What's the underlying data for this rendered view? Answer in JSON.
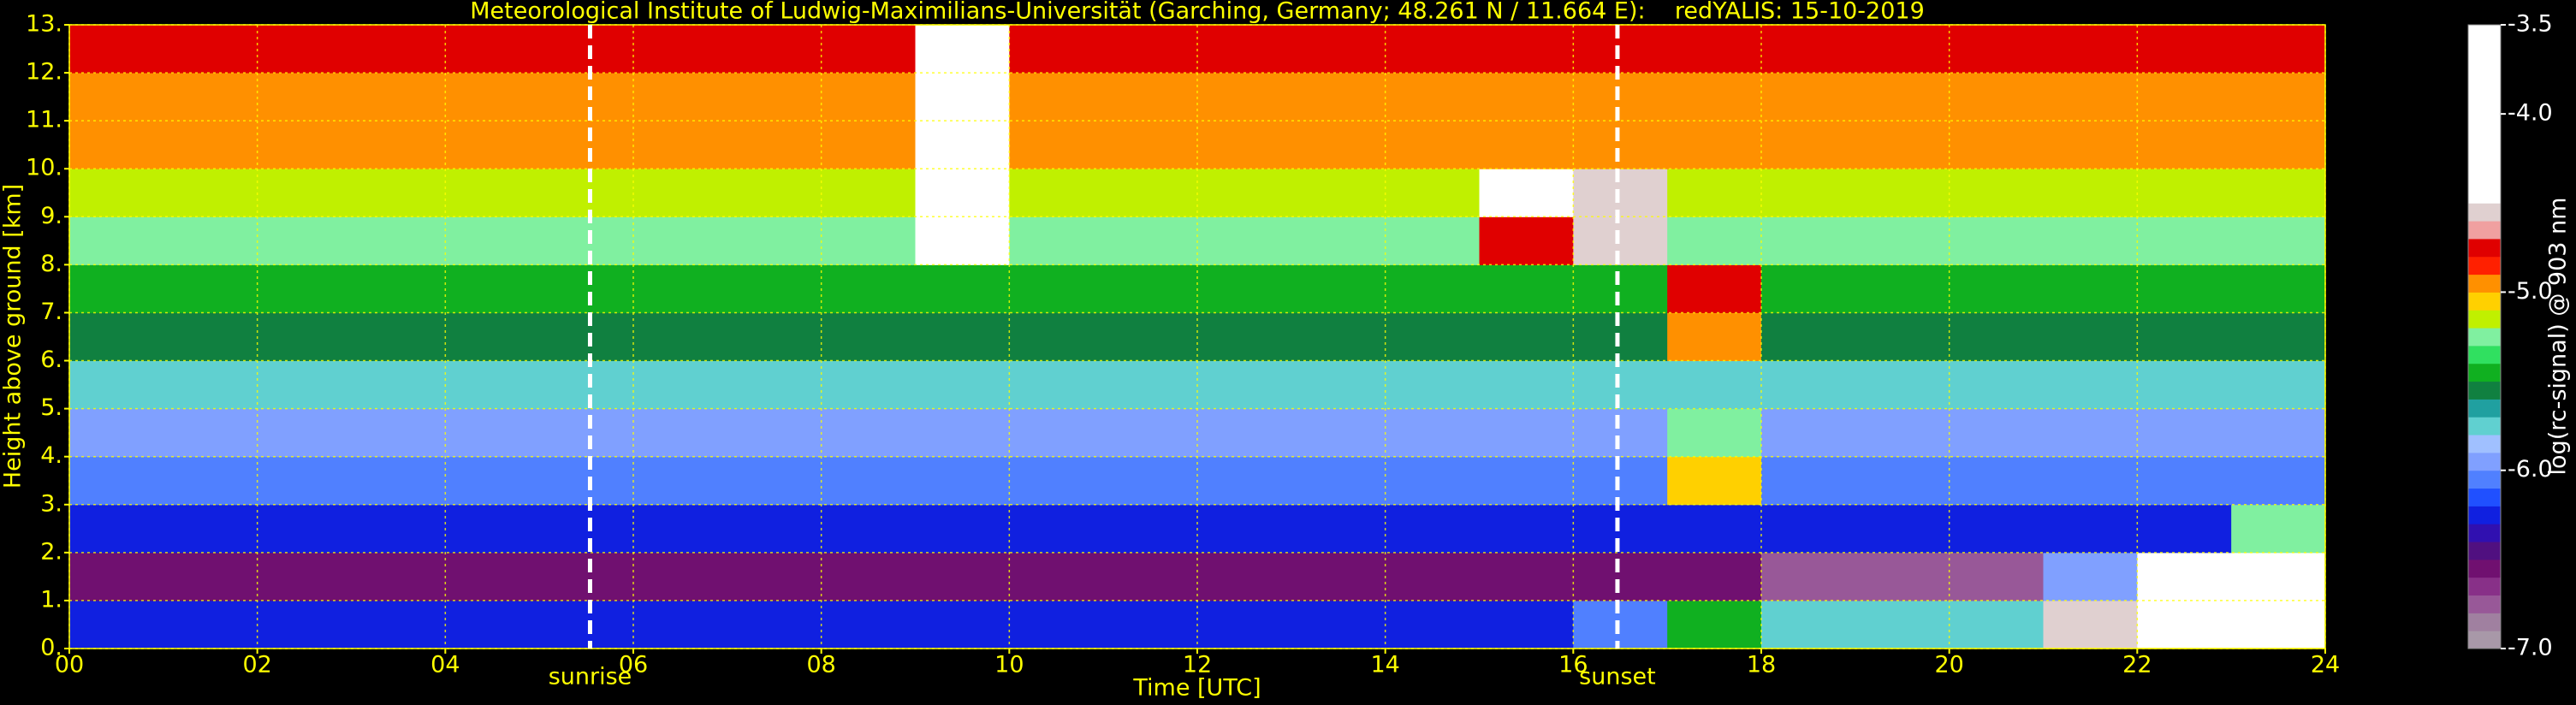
{
  "chart_data": {
    "type": "heatmap",
    "title": "Meteorological Institute of Ludwig-Maximilians-Universität (Garching, Germany; 48.261 N / 11.664 E):    redYALIS: 15-10-2019",
    "xlabel": "Time [UTC]",
    "ylabel": "Height above ground [km]",
    "colorbar_label": "log(rc-signal) @ 903 nm",
    "xbins": [
      0,
      1,
      2,
      3,
      4,
      5,
      6,
      7,
      8,
      9,
      10,
      11,
      12,
      13,
      14,
      15,
      16,
      17,
      18,
      19,
      20,
      21,
      22,
      23,
      24
    ],
    "ybins": [
      0,
      1,
      2,
      3,
      4,
      5,
      6,
      7,
      8,
      9,
      10,
      11,
      12,
      13
    ],
    "z": [
      [
        -6.3,
        -6.3,
        -6.3,
        -6.3,
        -6.3,
        -6.3,
        -6.3,
        -6.3,
        -6.3,
        -6.3,
        -6.3,
        -6.3,
        -6.3,
        -6.3,
        -6.3,
        -6.3,
        -6.1,
        -5.5,
        -5.8,
        -5.8,
        -5.8,
        -4.6,
        -4.1,
        -4.1
      ],
      [
        -6.6,
        -6.6,
        -6.6,
        -6.6,
        -6.6,
        -6.6,
        -6.6,
        -6.6,
        -6.6,
        -6.6,
        -6.6,
        -6.6,
        -6.6,
        -6.6,
        -6.6,
        -6.6,
        -6.6,
        -6.6,
        -6.8,
        -6.8,
        -6.8,
        -6.0,
        -4.3,
        -4.3
      ],
      [
        -6.3,
        -6.3,
        -6.3,
        -6.3,
        -6.3,
        -6.3,
        -6.3,
        -6.3,
        -6.3,
        -6.3,
        -6.3,
        -6.3,
        -6.3,
        -6.3,
        -6.3,
        -6.3,
        -6.3,
        -6.3,
        -6.3,
        -6.3,
        -6.3,
        -6.3,
        -6.3,
        -5.3
      ],
      [
        -6.1,
        -6.1,
        -6.1,
        -6.1,
        -6.1,
        -6.1,
        -6.1,
        -6.1,
        -6.1,
        -6.1,
        -6.1,
        -6.1,
        -6.1,
        -6.1,
        -6.1,
        -6.1,
        -6.1,
        -5.1,
        -6.1,
        -6.1,
        -6.1,
        -6.1,
        -6.1,
        -6.1
      ],
      [
        -5.9,
        -5.9,
        -5.9,
        -5.9,
        -5.9,
        -5.9,
        -5.9,
        -5.9,
        -5.9,
        -5.9,
        -5.9,
        -5.9,
        -5.9,
        -5.9,
        -5.9,
        -5.9,
        -5.9,
        -5.3,
        -5.9,
        -5.9,
        -5.9,
        -5.9,
        -5.9,
        -5.9
      ],
      [
        -5.8,
        -5.8,
        -5.8,
        -5.8,
        -5.8,
        -5.8,
        -5.8,
        -5.8,
        -5.8,
        -5.8,
        -5.8,
        -5.8,
        -5.8,
        -5.8,
        -5.8,
        -5.8,
        -5.8,
        -5.8,
        -5.8,
        -5.8,
        -5.8,
        -5.8,
        -5.8,
        -5.8
      ],
      [
        -5.6,
        -5.6,
        -5.6,
        -5.6,
        -5.6,
        -5.6,
        -5.6,
        -5.6,
        -5.6,
        -5.6,
        -5.6,
        -5.6,
        -5.6,
        -5.6,
        -5.6,
        -5.6,
        -5.6,
        -4.9,
        -5.6,
        -5.6,
        -5.6,
        -5.6,
        -5.6,
        -5.6
      ],
      [
        -5.5,
        -5.5,
        -5.5,
        -5.5,
        -5.5,
        -5.5,
        -5.5,
        -5.5,
        -5.5,
        -5.5,
        -5.5,
        -5.5,
        -5.5,
        -5.5,
        -5.5,
        -5.5,
        -5.5,
        -4.8,
        -5.5,
        -5.5,
        -5.5,
        -5.5,
        -5.5,
        -5.5
      ],
      [
        -5.3,
        -5.3,
        -5.3,
        -5.3,
        -5.3,
        -5.3,
        -5.3,
        -5.3,
        -5.3,
        -4.4,
        -5.3,
        -5.3,
        -5.3,
        -5.3,
        -5.3,
        -4.8,
        -4.6,
        -5.3,
        -5.3,
        -5.3,
        -5.3,
        -5.3,
        -5.3,
        -5.3
      ],
      [
        -5.2,
        -5.2,
        -5.2,
        -5.2,
        -5.2,
        -5.2,
        -5.2,
        -5.2,
        -5.2,
        -4.0,
        -5.2,
        -5.2,
        -5.2,
        -5.2,
        -5.2,
        -4.3,
        -4.6,
        -5.2,
        -5.2,
        -5.2,
        -5.2,
        -5.2,
        -5.2,
        -5.2
      ],
      [
        -5.0,
        -5.0,
        -5.0,
        -5.0,
        -5.0,
        -5.0,
        -5.0,
        -5.0,
        -5.0,
        -4.2,
        -5.0,
        -5.0,
        -5.0,
        -5.0,
        -5.0,
        -5.0,
        -5.0,
        -5.0,
        -5.0,
        -5.0,
        -5.0,
        -5.0,
        -5.0,
        -5.0
      ],
      [
        -4.9,
        -4.9,
        -4.9,
        -4.9,
        -4.9,
        -4.9,
        -4.9,
        -4.9,
        -4.9,
        -4.2,
        -4.9,
        -4.9,
        -4.9,
        -4.9,
        -4.9,
        -4.9,
        -4.9,
        -4.9,
        -4.9,
        -4.9,
        -4.9,
        -4.9,
        -4.9,
        -4.9
      ],
      [
        -4.8,
        -4.8,
        -4.8,
        -4.8,
        -4.8,
        -4.8,
        -4.8,
        -4.8,
        -4.8,
        -4.0,
        -4.8,
        -4.8,
        -4.8,
        -4.8,
        -4.8,
        -4.8,
        -4.8,
        -4.8,
        -4.8,
        -4.8,
        -4.8,
        -4.8,
        -4.8,
        -4.8
      ]
    ],
    "xlim": [
      0,
      24
    ],
    "ylim": [
      0,
      13
    ],
    "xticks": [
      {
        "value": 0,
        "label": "00"
      },
      {
        "value": 2,
        "label": "02"
      },
      {
        "value": 4,
        "label": "04"
      },
      {
        "value": 6,
        "label": "06"
      },
      {
        "value": 8,
        "label": "08"
      },
      {
        "value": 10,
        "label": "10"
      },
      {
        "value": 12,
        "label": "12"
      },
      {
        "value": 14,
        "label": "14"
      },
      {
        "value": 16,
        "label": "16"
      },
      {
        "value": 18,
        "label": "18"
      },
      {
        "value": 20,
        "label": "20"
      },
      {
        "value": 22,
        "label": "22"
      },
      {
        "value": 24,
        "label": "24"
      }
    ],
    "yticks": [
      {
        "value": 0,
        "label": "0."
      },
      {
        "value": 1,
        "label": "1."
      },
      {
        "value": 2,
        "label": "2."
      },
      {
        "value": 3,
        "label": "3."
      },
      {
        "value": 4,
        "label": "4."
      },
      {
        "value": 5,
        "label": "5."
      },
      {
        "value": 6,
        "label": "6."
      },
      {
        "value": 7,
        "label": "7."
      },
      {
        "value": 8,
        "label": "8."
      },
      {
        "value": 9,
        "label": "9."
      },
      {
        "value": 10,
        "label": "10."
      },
      {
        "value": 11,
        "label": "11."
      },
      {
        "value": 12,
        "label": "12."
      },
      {
        "value": 13,
        "label": "13."
      }
    ],
    "clim": [
      -7,
      -3.5
    ],
    "cticks": [
      {
        "value": -7,
        "label": "-7.0"
      },
      {
        "value": -6,
        "label": "-6.0"
      },
      {
        "value": -5,
        "label": "-5.0"
      },
      {
        "value": -4,
        "label": "-4.0"
      },
      -3.5
    ],
    "colormap": [
      "#a898a8",
      "#a080a0",
      "#985898",
      "#883088",
      "#701070",
      "#501080",
      "#3010b0",
      "#1020e0",
      "#2050ff",
      "#5080ff",
      "#80a0ff",
      "#a0c0ff",
      "#60d0d0",
      "#20a0a0",
      "#108040",
      "#10b020",
      "#30e060",
      "#80f0a0",
      "#c0f000",
      "#ffd000",
      "#ff9000",
      "#ff2000",
      "#e00000",
      "#f0a0a0",
      "#e0d0d0",
      "#ffffff",
      "#ffffff",
      "#ffffff",
      "#ffffff",
      "#ffffff",
      "#ffffff",
      "#ffffff",
      "#ffffff",
      "#ffffff",
      "#ffffff"
    ],
    "grid": true,
    "grid_color": "#ffff00",
    "annotations": [
      {
        "x": 5.54,
        "label": "sunrise"
      },
      {
        "x": 16.47,
        "label": "sunset"
      }
    ]
  }
}
